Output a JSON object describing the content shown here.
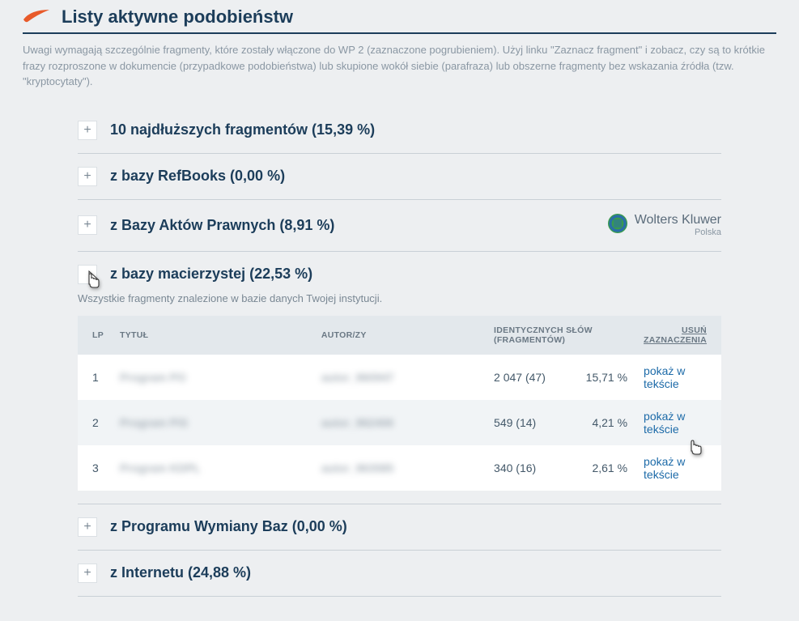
{
  "header": {
    "title": "Listy aktywne podobieństw",
    "description": "Uwagi wymagają szczególnie fragmenty, które zostały włączone do WP 2 (zaznaczone pogrubieniem). Użyj linku \"Zaznacz fragment\" i zobacz, czy są to krótkie frazy rozproszone w dokumencie (przypadkowe podobieństwa) lub skupione wokół siebie (parafraza) lub obszerne fragmenty bez wskazania źródła (tzw. \"kryptocytaty\")."
  },
  "sections": {
    "longest": {
      "title": "10 najdłuższych fragmentów (15,39 %)",
      "expand_glyph": "+"
    },
    "refbooks": {
      "title": "z bazy RefBooks (0,00 %)",
      "expand_glyph": "+"
    },
    "legal": {
      "title": "z Bazy Aktów Prawnych (8,91 %)",
      "expand_glyph": "+",
      "brand_name": "Wolters Kluwer",
      "brand_sub": "Polska"
    },
    "home": {
      "title": "z bazy macierzystej (22,53 %)",
      "subtitle": "Wszystkie fragmenty znalezione w bazie danych Twojej instytucji.",
      "table": {
        "headers": {
          "lp": "LP",
          "title": "TYTUŁ",
          "author": "AUTOR/ZY",
          "ident": "IDENTYCZNYCH SŁÓW (FRAGMENTÓW)",
          "usun": "USUŃ ZAZNACZENIA"
        },
        "show_label": "pokaż w tekście",
        "rows": [
          {
            "lp": "1",
            "title": "Program PO",
            "author": "autor_960947",
            "ident": "2 047 (47)",
            "pct": "15,71 %"
          },
          {
            "lp": "2",
            "title": "Program PiS",
            "author": "autor_962406",
            "ident": "549 (14)",
            "pct": "4,21 %"
          },
          {
            "lp": "3",
            "title": "Program KDPL",
            "author": "autor_963585",
            "ident": "340 (16)",
            "pct": "2,61 %"
          }
        ]
      }
    },
    "exchange": {
      "title": "z Programu Wymiany Baz (0,00 %)",
      "expand_glyph": "+"
    },
    "internet": {
      "title": "z Internetu (24,88 %)",
      "expand_glyph": "+"
    }
  }
}
